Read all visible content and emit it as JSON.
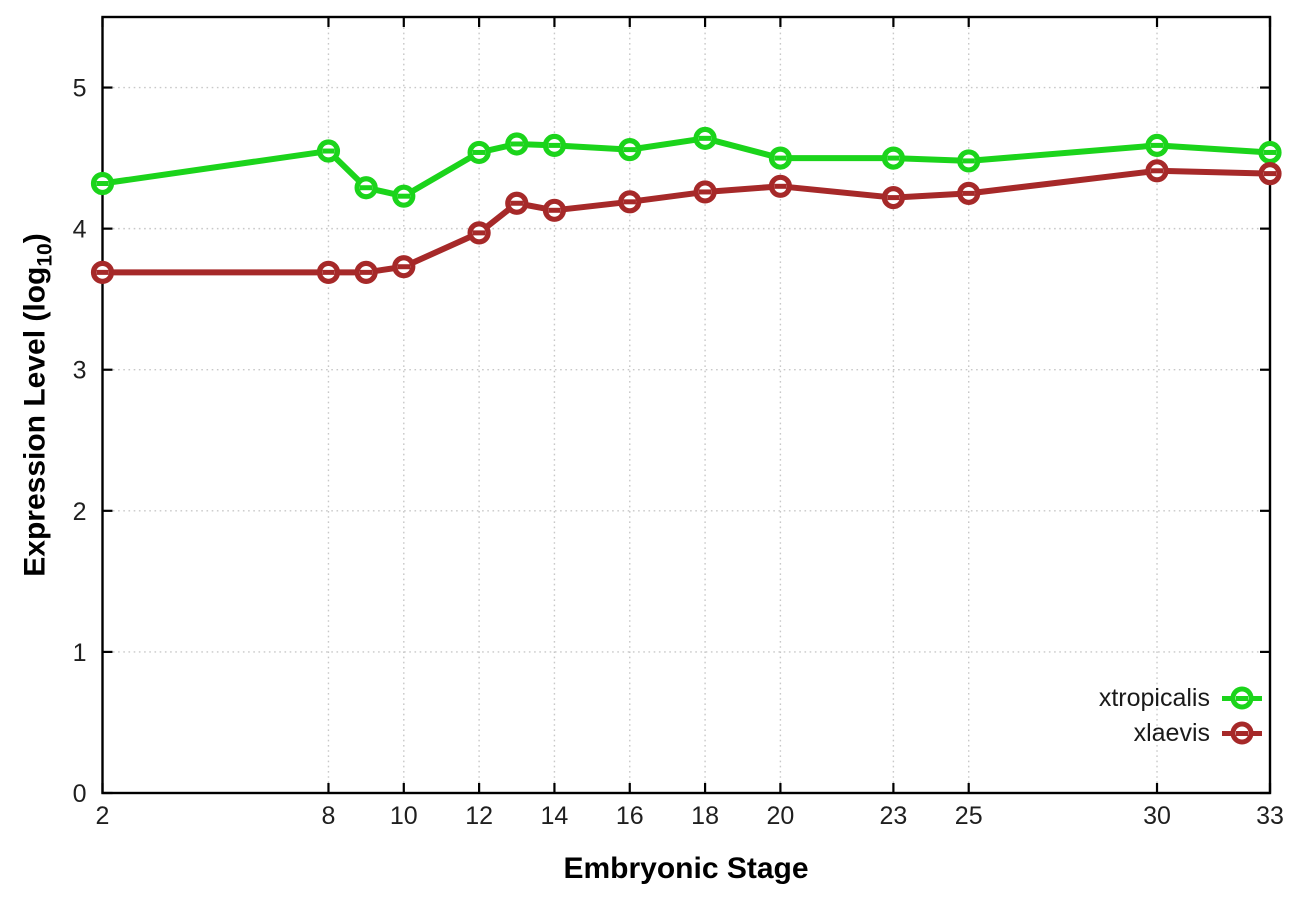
{
  "chart_data": {
    "type": "line",
    "title": "",
    "xlabel": "Embryonic Stage",
    "ylabel": "Expression Level (log10)",
    "ylabel_text": "Expression Level (log",
    "ylabel_sub": "10",
    "ylabel_end": ")",
    "x": [
      2,
      8,
      9,
      10,
      12,
      13,
      14,
      16,
      18,
      20,
      23,
      25,
      30,
      33
    ],
    "x_ticks": [
      2,
      8,
      10,
      12,
      14,
      16,
      18,
      20,
      23,
      25,
      30,
      33
    ],
    "y_ticks": [
      0,
      1,
      2,
      3,
      4,
      5
    ],
    "xlim": [
      2,
      33
    ],
    "ylim": [
      0,
      5.5
    ],
    "grid": true,
    "legend_position": "inside-bottom-right",
    "axis_color": "#000000",
    "grid_color": "#c8c8c8",
    "tick_label_color": "#1f1f1f",
    "series": [
      {
        "name": "xtropicalis",
        "color": "#1bd41b",
        "values": [
          4.32,
          4.55,
          4.29,
          4.23,
          4.54,
          4.6,
          4.59,
          4.56,
          4.64,
          4.5,
          4.5,
          4.48,
          4.59,
          4.54
        ]
      },
      {
        "name": "xlaevis",
        "color": "#a62929",
        "values": [
          3.69,
          3.69,
          3.69,
          3.73,
          3.97,
          4.18,
          4.13,
          4.19,
          4.26,
          4.3,
          4.22,
          4.25,
          4.41,
          4.39
        ]
      }
    ]
  }
}
